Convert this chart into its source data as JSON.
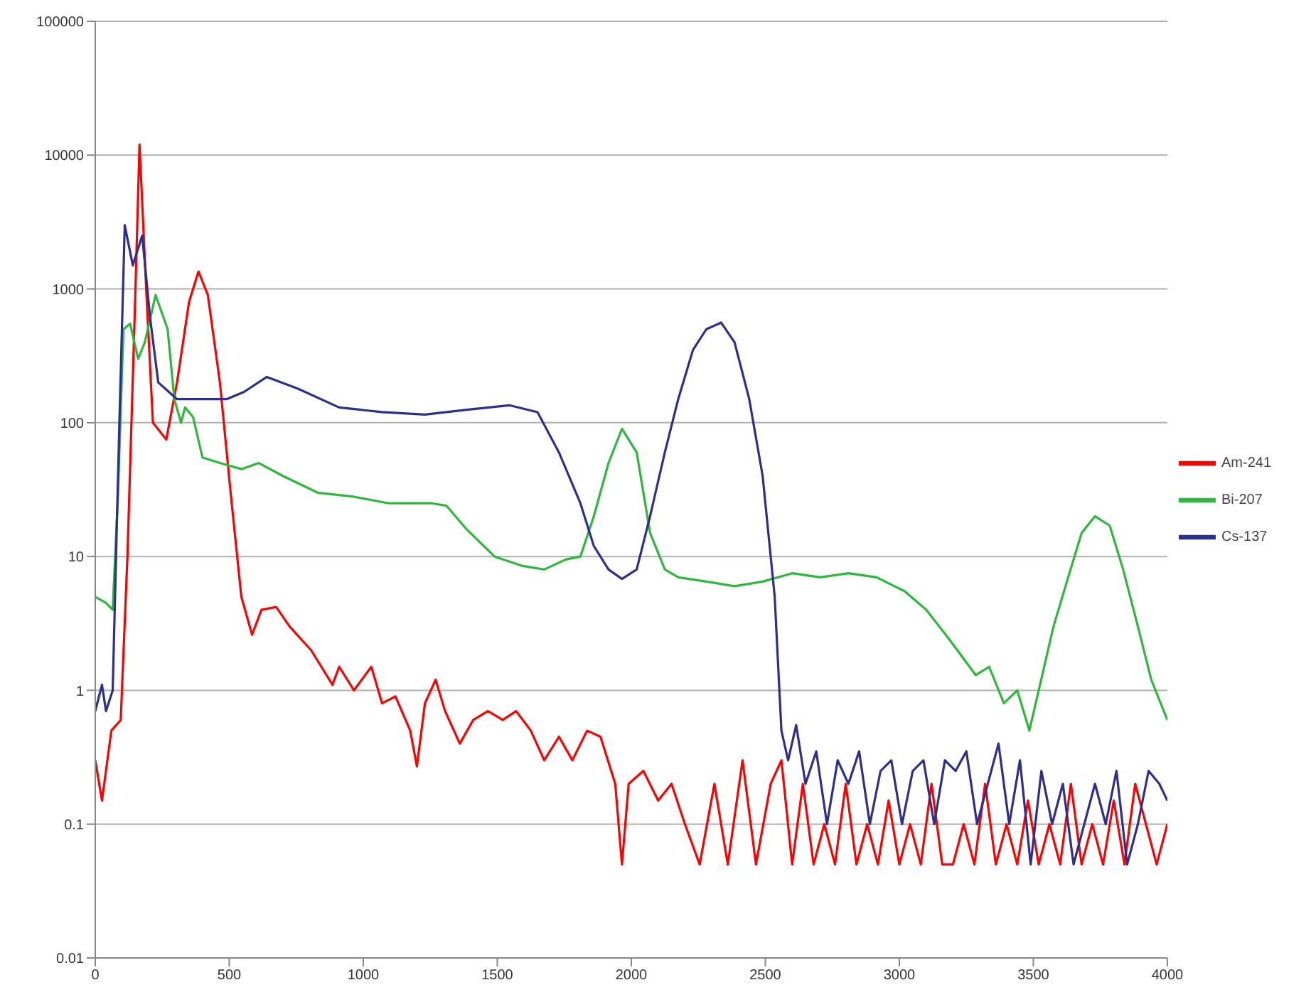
{
  "chart_data": {
    "type": "line",
    "log": "y",
    "grid": "y",
    "legend": "right",
    "marker": "none",
    "line_style": "solid",
    "xlim": [
      0,
      4000
    ],
    "xticks": [
      0,
      500,
      1000,
      1500,
      2000,
      2500,
      3000,
      3500,
      4000
    ],
    "ylim": [
      0.01,
      100000
    ],
    "yticks": [
      0.01,
      0.1,
      1,
      10,
      100,
      1000,
      10000,
      100000
    ],
    "series": [
      {
        "name": "Am-241",
        "color": "#ff0000",
        "x": [
          0,
          25,
          60,
          95,
          120,
          150,
          165,
          190,
          215,
          265,
          305,
          350,
          385,
          420,
          465,
          505,
          545,
          585,
          620,
          675,
          725,
          805,
          885,
          910,
          965,
          1030,
          1070,
          1120,
          1175,
          1200,
          1230,
          1270,
          1305,
          1360,
          1410,
          1465,
          1520,
          1570,
          1625,
          1675,
          1730,
          1780,
          1835,
          1885,
          1940,
          1965,
          1990,
          2045,
          2100,
          2150,
          2200,
          2255,
          2310,
          2360,
          2415,
          2465,
          2520,
          2560,
          2600,
          2640,
          2680,
          2720,
          2760,
          2800,
          2840,
          2880,
          2920,
          2960,
          3000,
          3040,
          3080,
          3120,
          3160,
          3200,
          3240,
          3280,
          3320,
          3360,
          3400,
          3440,
          3480,
          3520,
          3560,
          3600,
          3640,
          3680,
          3720,
          3760,
          3800,
          3840,
          3880,
          3920,
          3960,
          4000
        ],
        "values": [
          0.3,
          0.15,
          0.5,
          0.6,
          10,
          1000,
          12000,
          1000,
          100,
          75,
          200,
          800,
          1350,
          900,
          200,
          30,
          5,
          2.6,
          4,
          4.2,
          3,
          2,
          1.1,
          1.5,
          1,
          1.5,
          0.8,
          0.9,
          0.5,
          0.27,
          0.8,
          1.2,
          0.7,
          0.4,
          0.6,
          0.7,
          0.6,
          0.7,
          0.5,
          0.3,
          0.45,
          0.3,
          0.5,
          0.45,
          0.2,
          0.05,
          0.2,
          0.25,
          0.15,
          0.2,
          0.1,
          0.05,
          0.2,
          0.05,
          0.3,
          0.05,
          0.2,
          0.3,
          0.05,
          0.2,
          0.05,
          0.1,
          0.05,
          0.2,
          0.05,
          0.1,
          0.05,
          0.15,
          0.05,
          0.1,
          0.05,
          0.2,
          0.05,
          0.05,
          0.1,
          0.05,
          0.2,
          0.05,
          0.1,
          0.05,
          0.15,
          0.05,
          0.1,
          0.05,
          0.2,
          0.05,
          0.1,
          0.05,
          0.15,
          0.05,
          0.2,
          0.1,
          0.05,
          0.1
        ]
      },
      {
        "name": "Bi-207",
        "color": "#2db83d",
        "x": [
          0,
          40,
          65,
          85,
          105,
          130,
          160,
          185,
          225,
          270,
          295,
          320,
          335,
          365,
          400,
          465,
          545,
          610,
          700,
          830,
          965,
          1095,
          1255,
          1310,
          1385,
          1490,
          1595,
          1675,
          1755,
          1810,
          1860,
          1915,
          1965,
          2020,
          2070,
          2125,
          2175,
          2280,
          2385,
          2490,
          2600,
          2705,
          2810,
          2915,
          3020,
          3100,
          3180,
          3285,
          3335,
          3390,
          3440,
          3485,
          3520,
          3575,
          3630,
          3680,
          3730,
          3785,
          3835,
          3890,
          3940,
          4000
        ],
        "values": [
          5,
          4.5,
          4,
          30,
          500,
          550,
          300,
          400,
          900,
          500,
          150,
          100,
          130,
          110,
          55,
          50,
          45,
          50,
          40,
          30,
          28,
          25,
          25,
          24,
          16,
          10,
          8.5,
          8,
          9.5,
          10,
          20,
          50,
          90,
          60,
          15,
          8,
          7,
          6.5,
          6,
          6.5,
          7.5,
          7,
          7.5,
          7,
          5.5,
          4,
          2.5,
          1.3,
          1.5,
          0.8,
          1,
          0.5,
          1,
          3,
          7,
          15,
          20,
          17,
          8,
          3,
          1.2,
          0.6
        ]
      },
      {
        "name": "Cs-137",
        "color": "#2e2e8c",
        "x": [
          0,
          25,
          40,
          65,
          90,
          110,
          140,
          175,
          205,
          235,
          305,
          385,
          490,
          555,
          640,
          755,
          910,
          1070,
          1230,
          1385,
          1545,
          1650,
          1730,
          1810,
          1860,
          1915,
          1965,
          2020,
          2070,
          2125,
          2175,
          2230,
          2280,
          2335,
          2385,
          2440,
          2490,
          2535,
          2560,
          2585,
          2615,
          2650,
          2690,
          2730,
          2770,
          2810,
          2850,
          2890,
          2930,
          2970,
          3010,
          3050,
          3090,
          3130,
          3170,
          3210,
          3250,
          3290,
          3330,
          3370,
          3410,
          3450,
          3490,
          3530,
          3570,
          3610,
          3650,
          3690,
          3730,
          3770,
          3810,
          3850,
          3890,
          3930,
          3970,
          4000
        ],
        "values": [
          0.7,
          1.1,
          0.7,
          1,
          100,
          3000,
          1500,
          2500,
          600,
          200,
          150,
          150,
          150,
          170,
          220,
          180,
          130,
          120,
          115,
          125,
          135,
          120,
          60,
          25,
          12,
          8,
          6.8,
          8,
          20,
          60,
          150,
          350,
          500,
          560,
          400,
          150,
          40,
          5,
          0.5,
          0.3,
          0.55,
          0.2,
          0.35,
          0.1,
          0.3,
          0.2,
          0.35,
          0.1,
          0.25,
          0.3,
          0.1,
          0.25,
          0.3,
          0.1,
          0.3,
          0.25,
          0.35,
          0.1,
          0.2,
          0.4,
          0.1,
          0.3,
          0.05,
          0.25,
          0.1,
          0.2,
          0.05,
          0.1,
          0.2,
          0.1,
          0.25,
          0.05,
          0.1,
          0.25,
          0.2,
          0.15
        ]
      }
    ]
  }
}
